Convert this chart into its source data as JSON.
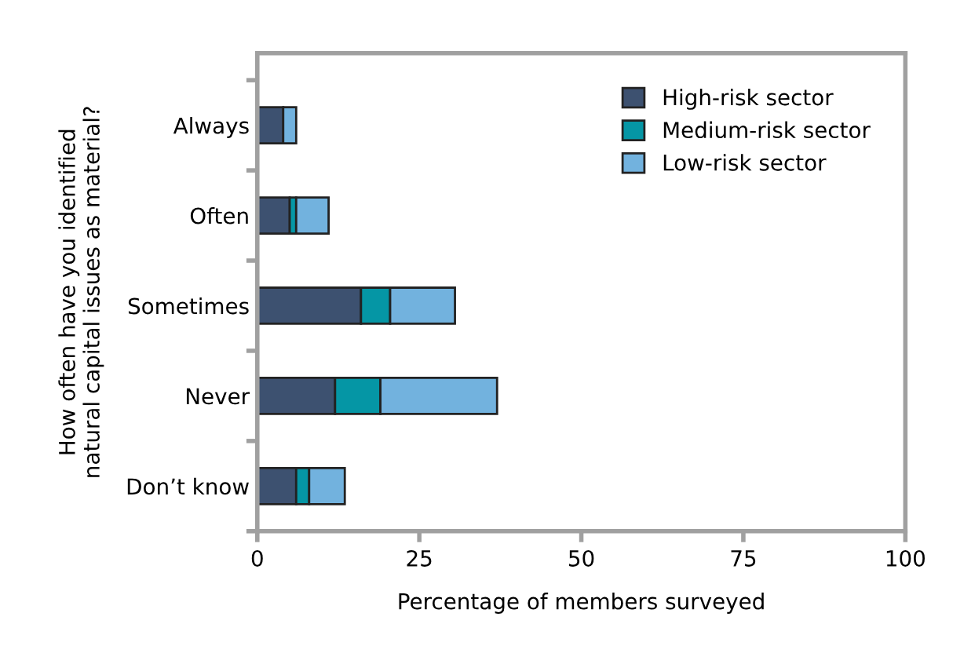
{
  "chart_data": {
    "type": "bar",
    "orientation": "horizontal",
    "stacked": true,
    "xlabel": "Percentage of members surveyed",
    "ylabel": "How often have you identified\nnatural capital issues as material?",
    "categories": [
      "Always",
      "Often",
      "Sometimes",
      "Never",
      "Don’t know"
    ],
    "series": [
      {
        "name": "High-risk sector",
        "color": "#3d5170",
        "values": [
          4,
          5,
          16,
          12,
          6
        ]
      },
      {
        "name": "Medium-risk sector",
        "color": "#0596a5",
        "values": [
          null,
          1,
          4.5,
          7,
          2
        ]
      },
      {
        "name": "Low-risk sector",
        "color": "#72b2de",
        "values": [
          2,
          5,
          10,
          18,
          5.5
        ]
      }
    ],
    "xlim": [
      0,
      100
    ],
    "xticks": [
      0,
      25,
      50,
      75,
      100
    ],
    "legend": "top right",
    "grid": false
  }
}
